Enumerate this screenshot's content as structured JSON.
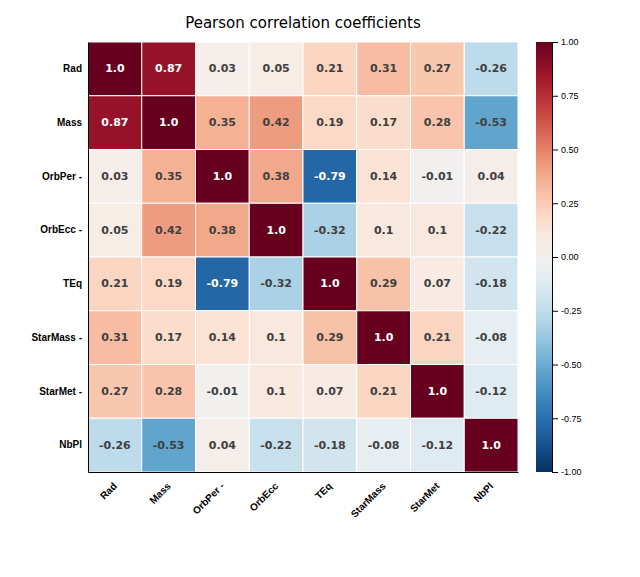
{
  "chart_data": {
    "type": "heatmap",
    "title": "Pearson correlation coefficients",
    "categories": [
      "Rad",
      "Mass",
      "OrbPer -",
      "OrbEcc",
      "TEq",
      "StarMass",
      "StarMet",
      "NbPl"
    ],
    "series": [
      {
        "name": "Rad",
        "values": [
          1.0,
          0.87,
          0.03,
          0.05,
          0.21,
          0.31,
          0.27,
          -0.26
        ],
        "value_labels": [
          "1.0",
          "0.87",
          "0.03",
          "0.05",
          "0.21",
          "0.31",
          "0.27",
          "-0.26"
        ]
      },
      {
        "name": "Mass",
        "values": [
          0.87,
          1.0,
          0.35,
          0.42,
          0.19,
          0.17,
          0.28,
          -0.53
        ],
        "value_labels": [
          "0.87",
          "1.0",
          "0.35",
          "0.42",
          "0.19",
          "0.17",
          "0.28",
          "-0.53"
        ]
      },
      {
        "name": "OrbPer -",
        "values": [
          0.03,
          0.35,
          1.0,
          0.38,
          -0.79,
          0.14,
          -0.01,
          0.04
        ],
        "value_labels": [
          "0.03",
          "0.35",
          "1.0",
          "0.38",
          "-0.79",
          "0.14",
          "-0.01",
          "0.04"
        ]
      },
      {
        "name": "OrbEcc -",
        "values": [
          0.05,
          0.42,
          0.38,
          1.0,
          -0.32,
          0.1,
          0.1,
          -0.22
        ],
        "value_labels": [
          "0.05",
          "0.42",
          "0.38",
          "1.0",
          "-0.32",
          "0.1",
          "0.1",
          "-0.22"
        ]
      },
      {
        "name": "TEq",
        "values": [
          0.21,
          0.19,
          -0.79,
          -0.32,
          1.0,
          0.29,
          0.07,
          -0.18
        ],
        "value_labels": [
          "0.21",
          "0.19",
          "-0.79",
          "-0.32",
          "1.0",
          "0.29",
          "0.07",
          "-0.18"
        ]
      },
      {
        "name": "StarMass -",
        "values": [
          0.31,
          0.17,
          0.14,
          0.1,
          0.29,
          1.0,
          0.21,
          -0.08
        ],
        "value_labels": [
          "0.31",
          "0.17",
          "0.14",
          "0.1",
          "0.29",
          "1.0",
          "0.21",
          "-0.08"
        ]
      },
      {
        "name": "StarMet -",
        "values": [
          0.27,
          0.28,
          -0.01,
          0.1,
          0.07,
          0.21,
          1.0,
          -0.12
        ],
        "value_labels": [
          "0.27",
          "0.28",
          "-0.01",
          "0.1",
          "0.07",
          "0.21",
          "1.0",
          "-0.12"
        ]
      },
      {
        "name": "NbPl",
        "values": [
          -0.26,
          -0.53,
          0.04,
          -0.22,
          -0.18,
          -0.08,
          -0.12,
          1.0
        ],
        "value_labels": [
          "-0.26",
          "-0.53",
          "0.04",
          "-0.22",
          "-0.18",
          "-0.08",
          "-0.12",
          "1.0"
        ]
      }
    ],
    "color": "RdBu_r",
    "data_labels": true,
    "zlim": [
      -1.0,
      1.0
    ],
    "zticks": [
      {
        "value": 1.0,
        "label": "1.00"
      },
      {
        "value": 0.75,
        "label": "0.75"
      },
      {
        "value": 0.5,
        "label": "0.50"
      },
      {
        "value": 0.25,
        "label": "0.25"
      },
      {
        "value": 0.0,
        "label": "0.00"
      },
      {
        "value": -0.25,
        "label": "-0.25"
      },
      {
        "value": -0.5,
        "label": "-0.50"
      },
      {
        "value": -0.75,
        "label": "-0.75"
      },
      {
        "value": -1.0,
        "label": "-1.00"
      }
    ]
  }
}
